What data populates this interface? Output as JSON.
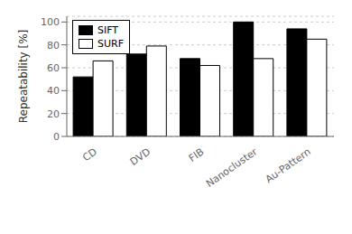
{
  "chart_data": {
    "type": "bar",
    "categories": [
      "CD",
      "DVD",
      "FIB",
      "Nanocluster",
      "Au-Pattern"
    ],
    "series": [
      {
        "name": "SIFT",
        "color": "#000000",
        "values": [
          52,
          72,
          68,
          100,
          94
        ]
      },
      {
        "name": "SURF",
        "color": "#ffffff",
        "values": [
          66,
          79,
          62,
          68,
          85
        ]
      }
    ],
    "y_label": "Repeatability [%]",
    "ylim": [
      0,
      105
    ],
    "yticks": [
      0,
      20,
      40,
      60,
      80,
      100
    ],
    "grid": true,
    "legend": "upper left"
  }
}
